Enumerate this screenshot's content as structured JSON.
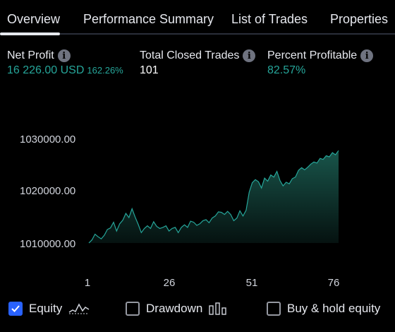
{
  "tabs": [
    {
      "label": "Overview",
      "active": true
    },
    {
      "label": "Performance Summary",
      "active": false
    },
    {
      "label": "List of Trades",
      "active": false
    },
    {
      "label": "Properties",
      "active": false
    }
  ],
  "stats": {
    "net_profit": {
      "label": "Net Profit",
      "value": "16 226.00 USD",
      "percent": "162.26%"
    },
    "total_closed_trades": {
      "label": "Total Closed Trades",
      "value": "101"
    },
    "percent_profitable": {
      "label": "Percent Profitable",
      "value": "82.57%"
    }
  },
  "chart_data": {
    "type": "area",
    "series": [
      {
        "name": "Equity",
        "values": [
          1010000,
          1010600,
          1011700,
          1011200,
          1010800,
          1011500,
          1012600,
          1012900,
          1014000,
          1012300,
          1013700,
          1014400,
          1015700,
          1014900,
          1016600,
          1015000,
          1013600,
          1012000,
          1012800,
          1013300,
          1012800,
          1014100,
          1013200,
          1012800,
          1013000,
          1013300,
          1012300,
          1012800,
          1013000,
          1012000,
          1013000,
          1013500,
          1013000,
          1014200,
          1014000,
          1013400,
          1013700,
          1014300,
          1014500,
          1013900,
          1014800,
          1015200,
          1016000,
          1015900,
          1015500,
          1016100,
          1015500,
          1014300,
          1014800,
          1016200,
          1015200,
          1016300,
          1019800,
          1021600,
          1022200,
          1021800,
          1020600,
          1022500,
          1021900,
          1023100,
          1022700,
          1023800,
          1022000,
          1021000,
          1021700,
          1021400,
          1022400,
          1022700,
          1024000,
          1024500,
          1024100,
          1024600,
          1025200,
          1025600,
          1025400,
          1026300,
          1026100,
          1026800,
          1026600,
          1027400,
          1027000,
          1027800
        ]
      }
    ],
    "x_ticks": [
      "1",
      "26",
      "51",
      "76"
    ],
    "y_ticks": [
      "1030000.00",
      "1020000.00",
      "1010000.00"
    ],
    "ylim": [
      1008000,
      1032000
    ]
  },
  "legend": [
    {
      "label": "Equity",
      "checked": true
    },
    {
      "label": "Drawdown",
      "checked": false
    },
    {
      "label": "Buy & hold equity",
      "checked": false
    }
  ],
  "colors": {
    "profit": "#26a69a",
    "line": "#26a69a",
    "area_top": "#1a5a4f",
    "area_bottom": "#061412",
    "checkbox": "#2962ff"
  }
}
